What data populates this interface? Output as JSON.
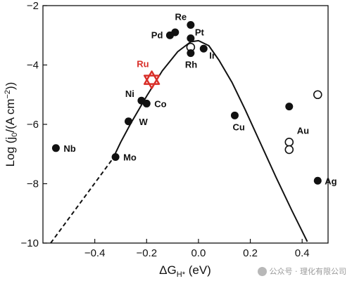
{
  "chart_data": {
    "type": "scatter",
    "xlabel": "ΔG",
    "xlabel_sub": "H*",
    "xlabel_unit": " (eV)",
    "ylabel": "Log (j",
    "ylabel_sub": "0",
    "ylabel_unit": "/(A cm",
    "ylabel_sup": "−2",
    "ylabel_close": "))",
    "xlim": [
      -0.6,
      0.5
    ],
    "ylim": [
      -10,
      -2
    ],
    "xticks": [
      -0.4,
      -0.2,
      0.0,
      0.2,
      0.4
    ],
    "xtick_labels": [
      "−0.4",
      "−0.2",
      "0.0",
      "0.2",
      "0.4"
    ],
    "yticks": [
      -2,
      -4,
      -6,
      -8,
      -10
    ],
    "ytick_labels": [
      "−2",
      "−4",
      "−6",
      "−8",
      "−10"
    ],
    "grid": false,
    "points": [
      {
        "label": "Re",
        "x": -0.03,
        "y": -2.65,
        "marker": "filled"
      },
      {
        "label": "Pt",
        "x": -0.03,
        "y": -3.1,
        "marker": "filled"
      },
      {
        "label": "",
        "x": -0.09,
        "y": -2.9,
        "marker": "filled"
      },
      {
        "label": "Pd",
        "x": -0.11,
        "y": -3.0,
        "marker": "filled"
      },
      {
        "label": "",
        "x": -0.03,
        "y": -3.4,
        "marker": "open"
      },
      {
        "label": "Rh",
        "x": -0.03,
        "y": -3.6,
        "marker": "filled"
      },
      {
        "label": "Ir",
        "x": 0.02,
        "y": -3.45,
        "marker": "filled"
      },
      {
        "label": "Ni",
        "x": -0.22,
        "y": -5.2,
        "marker": "filled"
      },
      {
        "label": "Co",
        "x": -0.2,
        "y": -5.3,
        "marker": "filled"
      },
      {
        "label": "W",
        "x": -0.27,
        "y": -5.9,
        "marker": "filled"
      },
      {
        "label": "Nb",
        "x": -0.55,
        "y": -6.8,
        "marker": "filled"
      },
      {
        "label": "Mo",
        "x": -0.32,
        "y": -7.1,
        "marker": "filled"
      },
      {
        "label": "Cu",
        "x": 0.14,
        "y": -5.7,
        "marker": "filled"
      },
      {
        "label": "",
        "x": 0.35,
        "y": -5.4,
        "marker": "filled"
      },
      {
        "label": "",
        "x": 0.46,
        "y": -5.0,
        "marker": "open"
      },
      {
        "label": "Au",
        "x": 0.35,
        "y": -6.6,
        "marker": "open"
      },
      {
        "label": "",
        "x": 0.35,
        "y": -6.85,
        "marker": "open"
      },
      {
        "label": "Ag",
        "x": 0.46,
        "y": -7.9,
        "marker": "filled"
      },
      {
        "label": "Ru",
        "x": -0.18,
        "y": -4.5,
        "marker": "star"
      }
    ],
    "volcano_curve": {
      "dashed": {
        "x": [
          -0.57,
          -0.33
        ],
        "y": [
          -10.0,
          -7.15
        ]
      },
      "solid": {
        "x": [
          -0.33,
          -0.3,
          -0.26,
          -0.2,
          -0.14,
          -0.08,
          -0.03,
          0.0,
          0.04,
          0.08,
          0.13,
          0.18,
          0.24,
          0.3,
          0.36,
          0.42
        ],
        "y": [
          -7.15,
          -6.6,
          -5.95,
          -5.05,
          -4.2,
          -3.55,
          -3.22,
          -3.18,
          -3.35,
          -3.85,
          -4.6,
          -5.5,
          -6.65,
          -7.8,
          -8.9,
          -9.95
        ]
      }
    },
    "colors": {
      "points": "#111111",
      "curve": "#111111",
      "highlight": "#d9302a"
    }
  },
  "watermark": {
    "text": "公众号 · 理化有限公司"
  }
}
